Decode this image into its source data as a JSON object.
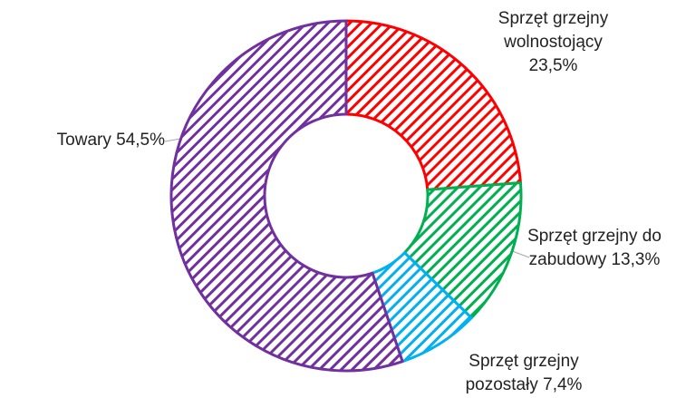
{
  "chart_data": {
    "type": "donut",
    "categories": [
      "Sprzęt grzejny wolnostojący",
      "Sprzęt grzejny do zabudowy",
      "Sprzęt grzejny pozostały",
      "Towary"
    ],
    "values": [
      23.5,
      13.3,
      7.4,
      54.5
    ],
    "value_labels": [
      "23,5%",
      "13,3%",
      "7,4%",
      "54,5%"
    ],
    "colors": [
      "#ff0000",
      "#00b050",
      "#00b0f0",
      "#7030a0"
    ],
    "pattern": "diagonal-hatch"
  }
}
